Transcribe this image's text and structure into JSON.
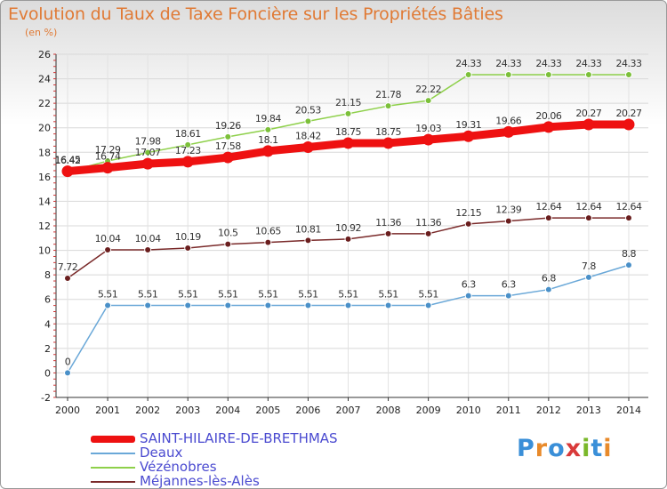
{
  "title": "Evolution du Taux de Taxe Foncière sur les Propriétés Bâties",
  "unit_label": "(en %)",
  "logo": {
    "text": "Proxiti",
    "colors": [
      "#3a8fd8",
      "#e88a2a",
      "#3a8fd8",
      "#d93a3a",
      "#7ab82a",
      "#3a8fd8",
      "#e88a2a"
    ]
  },
  "chart_data": {
    "type": "line",
    "x": [
      "2000",
      "2001",
      "2002",
      "2003",
      "2004",
      "2005",
      "2006",
      "2007",
      "2008",
      "2009",
      "2010",
      "2011",
      "2012",
      "2013",
      "2014"
    ],
    "ylim": [
      -2,
      26
    ],
    "yticks": [
      -2,
      0,
      2,
      4,
      6,
      8,
      10,
      12,
      14,
      16,
      18,
      20,
      22,
      24,
      26
    ],
    "grid": true,
    "legend_position": "bottom-left",
    "series": [
      {
        "name": "Vézénobres",
        "color": "#8ed04a",
        "markerColor": "#7cc03a",
        "values": [
          16.42,
          17.29,
          17.98,
          18.61,
          19.26,
          19.84,
          20.53,
          21.15,
          21.78,
          22.22,
          24.33,
          24.33,
          24.33,
          24.33,
          24.33
        ],
        "labels": [
          "16.42",
          "17.29",
          "17.98",
          "18.61",
          "19.26",
          "19.84",
          "20.53",
          "21.15",
          "21.78",
          "22.22",
          "24.33",
          "24.33",
          "24.33",
          "24.33",
          "24.33"
        ]
      },
      {
        "name": "Méjannes-lès-Alès",
        "color": "#7a2a2a",
        "markerColor": "#6a1e1e",
        "values": [
          7.72,
          10.04,
          10.04,
          10.19,
          10.5,
          10.65,
          10.81,
          10.92,
          11.36,
          11.36,
          12.15,
          12.39,
          12.64,
          12.64,
          12.64
        ],
        "labels": [
          "7.72",
          "10.04",
          "10.04",
          "10.19",
          "10.5",
          "10.65",
          "10.81",
          "10.92",
          "11.36",
          "11.36",
          "12.15",
          "12.39",
          "12.64",
          "12.64",
          "12.64"
        ]
      },
      {
        "name": "Deaux",
        "color": "#6aa8d8",
        "markerColor": "#4a90c8",
        "values": [
          0,
          5.51,
          5.51,
          5.51,
          5.51,
          5.51,
          5.51,
          5.51,
          5.51,
          5.51,
          6.3,
          6.3,
          6.8,
          7.8,
          8.8
        ],
        "labels": [
          "0",
          "5.51",
          "5.51",
          "5.51",
          "5.51",
          "5.51",
          "5.51",
          "5.51",
          "5.51",
          "5.51",
          "6.3",
          "6.3",
          "6.8",
          "7.8",
          "8.8"
        ]
      },
      {
        "name": "SAINT-HILAIRE-DE-BRETHMAS",
        "color": "#ee1111",
        "markerColor": "#ee1111",
        "values": [
          16.45,
          16.74,
          17.07,
          17.23,
          17.58,
          18.1,
          18.42,
          18.75,
          18.75,
          19.03,
          19.31,
          19.66,
          20.06,
          20.27,
          20.27
        ],
        "labels": [
          "16.45",
          "16.74",
          "17.07",
          "17.23",
          "17.58",
          "18.1",
          "18.42",
          "18.75",
          "18.75",
          "19.03",
          "19.31",
          "19.66",
          "20.06",
          "20.27",
          "20.27"
        ]
      }
    ],
    "legend": [
      "SAINT-HILAIRE-DE-BRETHMAS",
      "Deaux",
      "Vézénobres",
      "Méjannes-lès-Alès"
    ]
  }
}
